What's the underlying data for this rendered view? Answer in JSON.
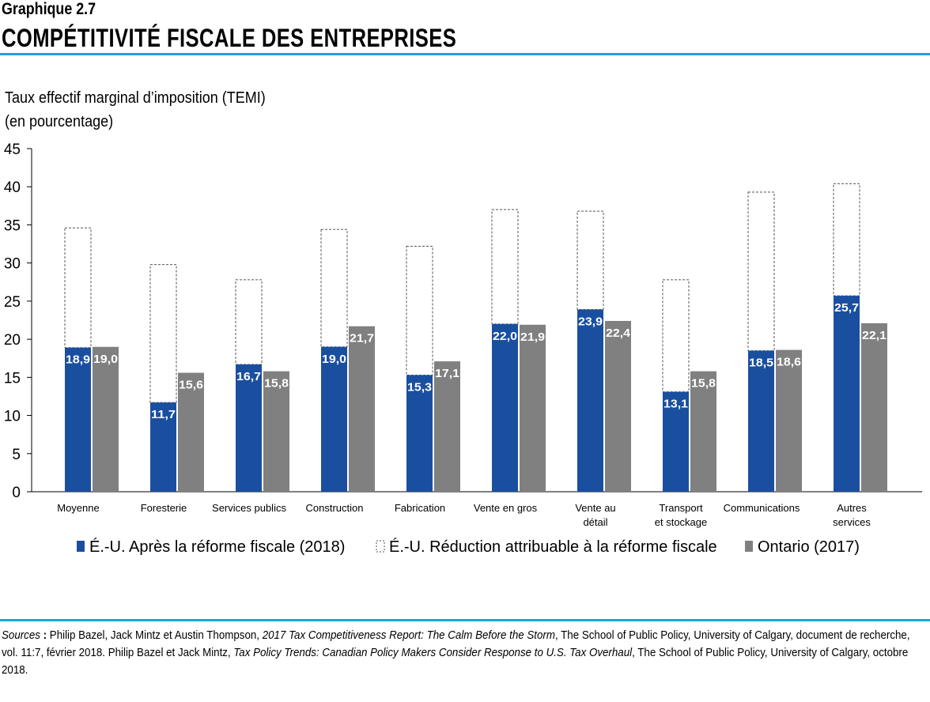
{
  "header": {
    "chart_number": "Graphique 2.7",
    "title": "COMPÉTITIVITÉ FISCALE DES ENTREPRISES"
  },
  "colors": {
    "us_after": "#1a4fa0",
    "ontario": "#808080",
    "rule": "#1aa7d4",
    "reduction_border": "#555555"
  },
  "chart_data": {
    "type": "bar",
    "stacked_for_us": true,
    "ylabel_line1": "Taux effectif marginal d’imposition  (TEMI)",
    "ylabel_line2": "(en pourcentage)",
    "ylim": [
      0,
      45
    ],
    "yticks": [
      0,
      5,
      10,
      15,
      20,
      25,
      30,
      35,
      40,
      45
    ],
    "grid": false,
    "legend_placement": "bottom",
    "categories": [
      [
        "Moyenne"
      ],
      [
        "Foresterie"
      ],
      [
        "Services publics"
      ],
      [
        "Construction"
      ],
      [
        "Fabrication"
      ],
      [
        "Vente en gros"
      ],
      [
        "Vente au",
        "détail"
      ],
      [
        "Transport",
        "et stockage"
      ],
      [
        "Communications"
      ],
      [
        "Autres",
        "services"
      ]
    ],
    "series": [
      {
        "name": "É.-U. Après la réforme fiscale (2018)",
        "values": [
          18.9,
          11.7,
          16.7,
          19.0,
          15.3,
          22.0,
          23.9,
          13.1,
          18.5,
          25.7
        ]
      },
      {
        "name": "É.-U. Réduction attribuable à la réforme fiscale",
        "values": [
          15.7,
          18.1,
          11.1,
          15.4,
          16.9,
          15.0,
          12.9,
          14.7,
          20.8,
          14.7
        ]
      },
      {
        "name": "Ontario (2017)",
        "values": [
          19.0,
          15.6,
          15.8,
          21.7,
          17.1,
          21.9,
          22.4,
          15.8,
          18.6,
          22.1
        ]
      }
    ]
  },
  "footer": {
    "sources_label": "Sources",
    "sources_sep": " : ",
    "s1": "Philip Bazel, Jack Mintz et Austin Thompson, ",
    "s1_title": "2017 Tax Competitiveness Report: The Calm Before the Storm",
    "s2": ", The School of Public Policy, University of Calgary, document de recherche, vol. 11:7, février 2018.  Philip Bazel et Jack Mintz, ",
    "s2_title": "Tax Policy Trends: Canadian Policy Makers Consider Response to U.S. Tax Overhaul",
    "s3": ", The School of Public Policy, University of Calgary, octobre 2018."
  }
}
